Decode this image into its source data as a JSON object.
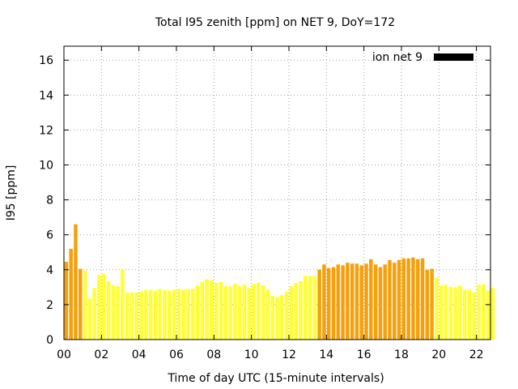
{
  "chart_data": {
    "type": "bar",
    "title": "Total I95 zenith [ppm] on NET 9, DoY=172",
    "xlabel": "Time of day UTC (15-minute intervals)",
    "ylabel": "I95 [ppm]",
    "legend": {
      "label": "ion net 9",
      "position": "top-right",
      "swatch_color": "#000000"
    },
    "xlim": [
      0,
      22.75
    ],
    "ylim": [
      0,
      16.8
    ],
    "xticks": [
      0,
      2,
      4,
      6,
      8,
      10,
      12,
      14,
      16,
      18,
      20,
      22
    ],
    "xtick_labels": [
      "00",
      "02",
      "04",
      "06",
      "08",
      "10",
      "12",
      "14",
      "16",
      "18",
      "20",
      "22"
    ],
    "yticks": [
      0,
      2,
      4,
      6,
      8,
      10,
      12,
      14,
      16
    ],
    "ytick_labels": [
      "0",
      "2",
      "4",
      "6",
      "8",
      "10",
      "12",
      "14",
      "16"
    ],
    "grid": true,
    "bar_interval_hours": 0.25,
    "colors": {
      "orange": "#f5a00c",
      "yellow": "#ffff33"
    },
    "values": [
      4.45,
      5.2,
      6.6,
      4.05,
      3.95,
      2.35,
      2.95,
      3.7,
      3.75,
      3.35,
      3.1,
      3.05,
      4.0,
      2.7,
      2.7,
      2.7,
      2.75,
      2.85,
      2.85,
      2.8,
      2.9,
      2.85,
      2.8,
      2.85,
      2.9,
      2.85,
      2.9,
      2.9,
      3.1,
      3.3,
      3.45,
      3.4,
      3.25,
      3.3,
      3.05,
      3.05,
      3.2,
      3.05,
      3.15,
      2.95,
      3.2,
      3.25,
      3.1,
      2.85,
      2.5,
      2.45,
      2.55,
      2.75,
      3.05,
      3.25,
      3.35,
      3.65,
      3.65,
      3.65,
      4.0,
      4.3,
      4.1,
      4.15,
      4.3,
      4.25,
      4.4,
      4.35,
      4.35,
      4.25,
      4.35,
      4.6,
      4.3,
      4.15,
      4.3,
      4.55,
      4.4,
      4.55,
      4.65,
      4.65,
      4.7,
      4.6,
      4.65,
      4.0,
      4.05,
      3.55,
      3.1,
      3.15,
      3.0,
      3.0,
      3.1,
      2.85,
      2.85,
      2.7,
      3.15,
      3.15,
      2.8,
      2.95
    ],
    "bar_colors": [
      "orange",
      "orange",
      "orange",
      "orange",
      "yellow",
      "yellow",
      "yellow",
      "yellow",
      "yellow",
      "yellow",
      "yellow",
      "yellow",
      "yellow",
      "yellow",
      "yellow",
      "yellow",
      "yellow",
      "yellow",
      "yellow",
      "yellow",
      "yellow",
      "yellow",
      "yellow",
      "yellow",
      "yellow",
      "yellow",
      "yellow",
      "yellow",
      "yellow",
      "yellow",
      "yellow",
      "yellow",
      "yellow",
      "yellow",
      "yellow",
      "yellow",
      "yellow",
      "yellow",
      "yellow",
      "yellow",
      "yellow",
      "yellow",
      "yellow",
      "yellow",
      "yellow",
      "yellow",
      "yellow",
      "yellow",
      "yellow",
      "yellow",
      "yellow",
      "yellow",
      "yellow",
      "yellow",
      "orange",
      "orange",
      "orange",
      "orange",
      "orange",
      "orange",
      "orange",
      "orange",
      "orange",
      "orange",
      "orange",
      "orange",
      "orange",
      "orange",
      "orange",
      "orange",
      "orange",
      "orange",
      "orange",
      "orange",
      "orange",
      "orange",
      "orange",
      "orange",
      "orange",
      "yellow",
      "yellow",
      "yellow",
      "yellow",
      "yellow",
      "yellow",
      "yellow",
      "yellow",
      "yellow",
      "yellow",
      "yellow",
      "yellow",
      "yellow"
    ]
  }
}
